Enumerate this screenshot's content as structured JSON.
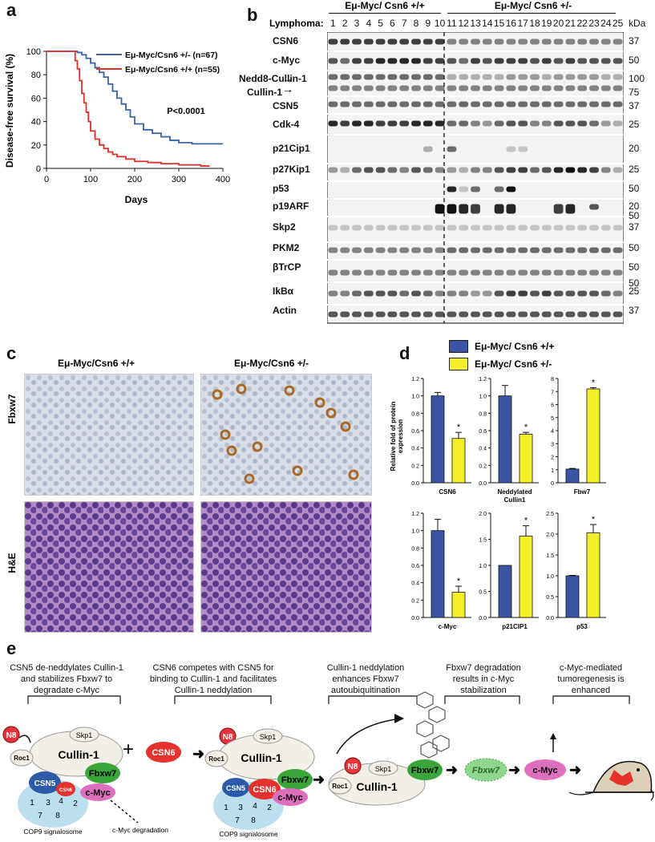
{
  "panel_labels": {
    "a": "a",
    "b": "b",
    "c": "c",
    "d": "d",
    "e": "e"
  },
  "panel_a": {
    "ylabel": "Disease-free survival (%)",
    "xlabel": "Days",
    "pvalue": "P<0.0001",
    "legend": [
      {
        "text": "Eμ-Myc/Csn6 +/- (n=67)",
        "color": "#3a62a8"
      },
      {
        "text": "Eμ-Myc/Csn6 +/+ (n=55)",
        "color": "#e0302a"
      }
    ],
    "chart_data": {
      "type": "line",
      "xlim": [
        0,
        400
      ],
      "ylim": [
        0,
        100
      ],
      "xticks": [
        "0",
        "100",
        "200",
        "300",
        "400"
      ],
      "yticks": [
        "0",
        "20",
        "40",
        "60",
        "80",
        "100"
      ],
      "series": [
        {
          "name": "Eμ-Myc/Csn6 +/- (n=67)",
          "color": "#3a62a8",
          "x": [
            60,
            70,
            80,
            90,
            100,
            110,
            120,
            130,
            140,
            150,
            160,
            170,
            180,
            190,
            200,
            220,
            240,
            260,
            280,
            300,
            330,
            400
          ],
          "y": [
            100,
            99,
            97,
            94,
            90,
            86,
            82,
            78,
            72,
            66,
            60,
            55,
            50,
            44,
            38,
            33,
            30,
            27,
            24,
            22,
            21,
            21
          ]
        },
        {
          "name": "Eμ-Myc/Csn6 +/+ (n=55)",
          "color": "#e0302a",
          "x": [
            60,
            65,
            70,
            75,
            80,
            85,
            90,
            95,
            100,
            110,
            120,
            130,
            140,
            150,
            160,
            180,
            200,
            230,
            260,
            300,
            350,
            370
          ],
          "y": [
            100,
            92,
            85,
            75,
            64,
            56,
            48,
            40,
            32,
            25,
            20,
            17,
            14,
            12,
            10,
            8,
            6,
            5,
            4,
            3,
            2,
            2
          ]
        }
      ]
    }
  },
  "panel_b": {
    "lymphoma_label": "Lymphoma:",
    "group1": "Eμ-Myc/ Csn6 +/+",
    "group2": "Eμ-Myc/ Csn6 +/-",
    "kda": "kDa",
    "lanes": [
      "1",
      "2",
      "3",
      "4",
      "5",
      "6",
      "7",
      "8",
      "9",
      "10",
      "11",
      "12",
      "13",
      "14",
      "15",
      "16",
      "17",
      "18",
      "19",
      "20",
      "21",
      "22",
      "23",
      "24",
      "25"
    ],
    "rows": [
      {
        "name": "CSN6",
        "mw": "37"
      },
      {
        "name": "c-Myc",
        "mw": "50"
      },
      {
        "name": "Nedd8-Cullin-1",
        "mw": "100"
      },
      {
        "name": "Cullin-1",
        "mw": "75"
      },
      {
        "name": "CSN5",
        "mw": "37"
      },
      {
        "name": "Cdk-4",
        "mw": "25"
      },
      {
        "name": "p21Cip1",
        "mw": "20"
      },
      {
        "name": "p27Kip1",
        "mw": "25"
      },
      {
        "name": "p53",
        "mw": "50"
      },
      {
        "name": "p19ARF",
        "mw": "20"
      },
      {
        "name": "Skp2",
        "mw": "37"
      },
      {
        "name": "PKM2",
        "mw": "50"
      },
      {
        "name": "βTrCP",
        "mw": "50"
      },
      {
        "name": "IkBα",
        "mw": "25"
      },
      {
        "name": "Actin",
        "mw": "37"
      }
    ],
    "extra_mw": {
      "skp2_top": "50",
      "ikba_top": "50"
    }
  },
  "panel_c": {
    "col1": "Eμ-Myc/Csn6 +/+",
    "col2": "Eμ-Myc/Csn6 +/-",
    "row1": "Fbxw7",
    "row2": "H&E"
  },
  "panel_d": {
    "legend": [
      {
        "text": "Eμ-Myc/ Csn6 +/+",
        "color": "#3a55a4"
      },
      {
        "text": "Eμ-Myc/ Csn6 +/-",
        "color": "#f5ef2a"
      }
    ],
    "ylabel": "Relative fold of protein expression",
    "chart_data": [
      {
        "type": "bar",
        "title": "CSN6",
        "categories": [
          "+/+",
          "+/-"
        ],
        "values": [
          1.0,
          0.51
        ],
        "errors": [
          0.04,
          0.07
        ],
        "ylim": [
          0,
          1.2
        ],
        "yticks": [
          "0.0",
          "0.2",
          "0.4",
          "0.6",
          "0.8",
          "1.0",
          "1.2"
        ],
        "sig": "*"
      },
      {
        "type": "bar",
        "title": "Neddylated Cullin1",
        "categories": [
          "+/+",
          "+/-"
        ],
        "values": [
          1.0,
          0.56
        ],
        "errors": [
          0.12,
          0.02
        ],
        "ylim": [
          0,
          1.2
        ],
        "yticks": [
          "0.0",
          "0.2",
          "0.4",
          "0.6",
          "0.8",
          "1.0",
          "1.2"
        ],
        "sig": "*"
      },
      {
        "type": "bar",
        "title": "Fbw7",
        "categories": [
          "+/+",
          "+/-"
        ],
        "values": [
          1.05,
          7.2
        ],
        "errors": [
          0.05,
          0.1
        ],
        "ylim": [
          0,
          8
        ],
        "yticks": [
          "0",
          "1",
          "2",
          "3",
          "4",
          "5",
          "6",
          "7",
          "8"
        ],
        "sig": "*"
      },
      {
        "type": "bar",
        "title": "c-Myc",
        "categories": [
          "+/+",
          "+/-"
        ],
        "values": [
          1.0,
          0.29
        ],
        "errors": [
          0.13,
          0.07
        ],
        "ylim": [
          0,
          1.2
        ],
        "yticks": [
          "0.0",
          "0.2",
          "0.4",
          "0.6",
          "0.8",
          "1.0",
          "1.2"
        ],
        "sig": "*"
      },
      {
        "type": "bar",
        "title": "p21CIP1",
        "categories": [
          "+/+",
          "+/-"
        ],
        "values": [
          1.0,
          1.56
        ],
        "errors": [
          0.0,
          0.2
        ],
        "ylim": [
          0,
          2.0
        ],
        "yticks": [
          "0.0",
          "0.5",
          "1.0",
          "1.5",
          "2.0"
        ],
        "sig": "*"
      },
      {
        "type": "bar",
        "title": "p53",
        "categories": [
          "+/+",
          "+/-"
        ],
        "values": [
          1.0,
          2.03
        ],
        "errors": [
          0.01,
          0.2
        ],
        "ylim": [
          0,
          2.5
        ],
        "yticks": [
          "0.0",
          "0.5",
          "1.0",
          "1.5",
          "2.0",
          "2.5"
        ],
        "sig": "*"
      }
    ]
  },
  "panel_e": {
    "steps": [
      "CSN5 de-neddylates Cullin-1 and stabilizes Fbxw7 to degradate c-Myc",
      "CSN6 competes with CSN5 for binding to Cullin-1 and facilitates Cullin-1 neddylation",
      "Cullin-1 neddylation enhances Fbxw7 autoubiquitination",
      "Fbxw7 degradation results in c-Myc stabilization",
      "c-Myc-mediated tumoregenesis is enhanced"
    ],
    "labels": {
      "n8": "N8",
      "skp1": "Skp1",
      "cullin1": "Cullin-1",
      "roc1": "Roc1",
      "csn5": "CSN5",
      "csn6": "CSN6",
      "fbxw7": "Fbxw7",
      "cmyc": "c-Myc",
      "csn_nums": [
        "1",
        "3",
        "4",
        "2",
        "7",
        "8"
      ],
      "cop9": "COP9 signalosome",
      "degradation": "c-Myc degradation",
      "plus": "+"
    },
    "colors": {
      "n8": "#e8333a",
      "csn5": "#2c5aa8",
      "csn6": "#e5322d",
      "fbxw7": "#3aa63a",
      "cmyc": "#de6fbf",
      "cullin": "#f2f0e6"
    }
  }
}
